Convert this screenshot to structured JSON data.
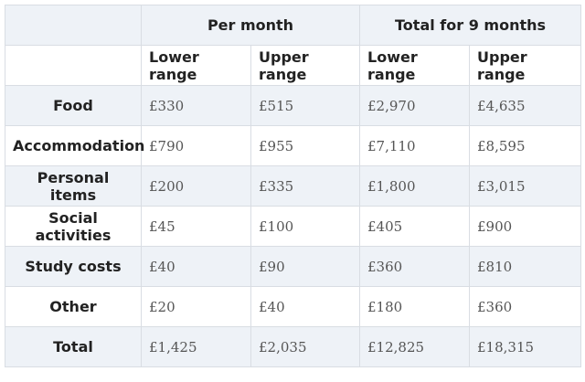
{
  "header": {
    "corner": "",
    "group1": "Per month",
    "group2": "Total for 9 months"
  },
  "subheader": {
    "corner": "",
    "cols": [
      "Lower range",
      "Upper range",
      "Lower range",
      "Upper range"
    ]
  },
  "rows": [
    {
      "label": "Food",
      "values": [
        "£330",
        "£515",
        "£2,970",
        "£4,635"
      ]
    },
    {
      "label": "Accommodation",
      "values": [
        "£790",
        "£955",
        "£7,110",
        "£8,595"
      ]
    },
    {
      "label": "Personal items",
      "values": [
        "£200",
        "£335",
        "£1,800",
        "£3,015"
      ]
    },
    {
      "label": "Social activities",
      "values": [
        "£45",
        "£100",
        "£405",
        "£900"
      ]
    },
    {
      "label": "Study costs",
      "values": [
        "£40",
        "£90",
        "£360",
        "£810"
      ]
    },
    {
      "label": "Other",
      "values": [
        "£20",
        "£40",
        "£180",
        "£360"
      ]
    },
    {
      "label": "Total",
      "values": [
        "£1,425",
        "£2,035",
        "£12,825",
        "£18,315"
      ]
    }
  ]
}
